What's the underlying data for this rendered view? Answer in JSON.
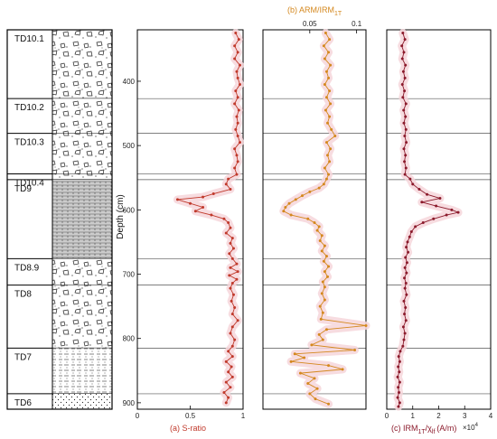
{
  "stratigraphy": {
    "units": [
      {
        "label": "TD10.1",
        "top": 320,
        "bottom": 427,
        "pattern": "breccia"
      },
      {
        "label": "TD10.2",
        "top": 427,
        "bottom": 481,
        "pattern": "breccia"
      },
      {
        "label": "TD10.3",
        "top": 481,
        "bottom": 544,
        "pattern": "breccia"
      },
      {
        "label": "TD10.4",
        "top": 544,
        "bottom": 553,
        "pattern": "breccia"
      },
      {
        "label": "TD9",
        "top": 553,
        "bottom": 676,
        "pattern": "laminated"
      },
      {
        "label": "TD8.9",
        "top": 676,
        "bottom": 717,
        "pattern": "breccia"
      },
      {
        "label": "TD8",
        "top": 717,
        "bottom": 815,
        "pattern": "breccia"
      },
      {
        "label": "TD7",
        "top": 815,
        "bottom": 886,
        "pattern": "sandy"
      },
      {
        "label": "TD6",
        "top": 886,
        "bottom": 910,
        "pattern": "dotted"
      }
    ]
  },
  "colors": {
    "s_ratio": "#c0392b",
    "arm": "#d4881e",
    "irm": "#8b1a2b",
    "band": "#f6d6da",
    "boundary": "#555555"
  },
  "chart_data": [
    {
      "type": "line",
      "title": "(a) S-ratio",
      "ylabel": "Depth (cm)",
      "ylim": [
        320,
        910
      ],
      "xlim": [
        0,
        1
      ],
      "xticks": [
        "0",
        "0.5",
        "1"
      ],
      "yticks": [
        "400",
        "500",
        "600",
        "700",
        "800",
        "900"
      ],
      "boundaries": [
        427,
        481,
        544,
        553,
        676,
        717,
        815,
        886
      ],
      "points": [
        {
          "depth": 325,
          "value": 0.93
        },
        {
          "depth": 335,
          "value": 0.96
        },
        {
          "depth": 345,
          "value": 0.92
        },
        {
          "depth": 355,
          "value": 0.95
        },
        {
          "depth": 365,
          "value": 0.92
        },
        {
          "depth": 375,
          "value": 0.97
        },
        {
          "depth": 385,
          "value": 0.94
        },
        {
          "depth": 395,
          "value": 0.95
        },
        {
          "depth": 405,
          "value": 0.97
        },
        {
          "depth": 415,
          "value": 0.93
        },
        {
          "depth": 425,
          "value": 0.95
        },
        {
          "depth": 435,
          "value": 0.92
        },
        {
          "depth": 445,
          "value": 0.96
        },
        {
          "depth": 455,
          "value": 0.94
        },
        {
          "depth": 465,
          "value": 0.95
        },
        {
          "depth": 475,
          "value": 0.93
        },
        {
          "depth": 485,
          "value": 0.95
        },
        {
          "depth": 495,
          "value": 0.97
        },
        {
          "depth": 505,
          "value": 0.92
        },
        {
          "depth": 515,
          "value": 0.94
        },
        {
          "depth": 525,
          "value": 0.95
        },
        {
          "depth": 535,
          "value": 0.92
        },
        {
          "depth": 545,
          "value": 0.94
        },
        {
          "depth": 552,
          "value": 0.86
        },
        {
          "depth": 560,
          "value": 0.84
        },
        {
          "depth": 568,
          "value": 0.88
        },
        {
          "depth": 575,
          "value": 0.72
        },
        {
          "depth": 580,
          "value": 0.62
        },
        {
          "depth": 584,
          "value": 0.38
        },
        {
          "depth": 590,
          "value": 0.5
        },
        {
          "depth": 596,
          "value": 0.62
        },
        {
          "depth": 602,
          "value": 0.55
        },
        {
          "depth": 608,
          "value": 0.7
        },
        {
          "depth": 614,
          "value": 0.82
        },
        {
          "depth": 620,
          "value": 0.86
        },
        {
          "depth": 628,
          "value": 0.88
        },
        {
          "depth": 636,
          "value": 0.84
        },
        {
          "depth": 644,
          "value": 0.9
        },
        {
          "depth": 652,
          "value": 0.88
        },
        {
          "depth": 660,
          "value": 0.91
        },
        {
          "depth": 668,
          "value": 0.87
        },
        {
          "depth": 676,
          "value": 0.9
        },
        {
          "depth": 684,
          "value": 0.94
        },
        {
          "depth": 690,
          "value": 0.88
        },
        {
          "depth": 696,
          "value": 0.95
        },
        {
          "depth": 702,
          "value": 0.87
        },
        {
          "depth": 708,
          "value": 0.94
        },
        {
          "depth": 714,
          "value": 0.9
        },
        {
          "depth": 722,
          "value": 0.88
        },
        {
          "depth": 732,
          "value": 0.91
        },
        {
          "depth": 742,
          "value": 0.89
        },
        {
          "depth": 752,
          "value": 0.92
        },
        {
          "depth": 762,
          "value": 0.9
        },
        {
          "depth": 772,
          "value": 0.95
        },
        {
          "depth": 782,
          "value": 0.9
        },
        {
          "depth": 792,
          "value": 0.88
        },
        {
          "depth": 802,
          "value": 0.92
        },
        {
          "depth": 812,
          "value": 0.9
        },
        {
          "depth": 820,
          "value": 0.86
        },
        {
          "depth": 828,
          "value": 0.9
        },
        {
          "depth": 836,
          "value": 0.84
        },
        {
          "depth": 844,
          "value": 0.89
        },
        {
          "depth": 852,
          "value": 0.86
        },
        {
          "depth": 860,
          "value": 0.9
        },
        {
          "depth": 868,
          "value": 0.84
        },
        {
          "depth": 876,
          "value": 0.88
        },
        {
          "depth": 884,
          "value": 0.82
        },
        {
          "depth": 892,
          "value": 0.86
        },
        {
          "depth": 900,
          "value": 0.84
        }
      ]
    },
    {
      "type": "line",
      "title": "(b) ARM/IRM1T",
      "ylim": [
        320,
        910
      ],
      "xlim": [
        0,
        0.11
      ],
      "xticks": [
        "0.05",
        "0.1"
      ],
      "boundaries": [
        427,
        481,
        544,
        553,
        676,
        717,
        815,
        886
      ],
      "points": [
        {
          "depth": 325,
          "value": 0.067
        },
        {
          "depth": 335,
          "value": 0.071
        },
        {
          "depth": 345,
          "value": 0.065
        },
        {
          "depth": 355,
          "value": 0.07
        },
        {
          "depth": 365,
          "value": 0.066
        },
        {
          "depth": 375,
          "value": 0.072
        },
        {
          "depth": 385,
          "value": 0.068
        },
        {
          "depth": 395,
          "value": 0.07
        },
        {
          "depth": 405,
          "value": 0.066
        },
        {
          "depth": 415,
          "value": 0.071
        },
        {
          "depth": 425,
          "value": 0.068
        },
        {
          "depth": 435,
          "value": 0.072
        },
        {
          "depth": 445,
          "value": 0.067
        },
        {
          "depth": 455,
          "value": 0.071
        },
        {
          "depth": 465,
          "value": 0.069
        },
        {
          "depth": 475,
          "value": 0.073
        },
        {
          "depth": 485,
          "value": 0.077
        },
        {
          "depth": 495,
          "value": 0.068
        },
        {
          "depth": 505,
          "value": 0.072
        },
        {
          "depth": 515,
          "value": 0.069
        },
        {
          "depth": 525,
          "value": 0.071
        },
        {
          "depth": 535,
          "value": 0.066
        },
        {
          "depth": 545,
          "value": 0.07
        },
        {
          "depth": 552,
          "value": 0.068
        },
        {
          "depth": 560,
          "value": 0.065
        },
        {
          "depth": 566,
          "value": 0.06
        },
        {
          "depth": 572,
          "value": 0.05
        },
        {
          "depth": 578,
          "value": 0.042
        },
        {
          "depth": 584,
          "value": 0.035
        },
        {
          "depth": 590,
          "value": 0.028
        },
        {
          "depth": 596,
          "value": 0.024
        },
        {
          "depth": 602,
          "value": 0.022
        },
        {
          "depth": 608,
          "value": 0.03
        },
        {
          "depth": 614,
          "value": 0.048
        },
        {
          "depth": 620,
          "value": 0.055
        },
        {
          "depth": 626,
          "value": 0.06
        },
        {
          "depth": 632,
          "value": 0.058
        },
        {
          "depth": 640,
          "value": 0.063
        },
        {
          "depth": 648,
          "value": 0.061
        },
        {
          "depth": 656,
          "value": 0.066
        },
        {
          "depth": 664,
          "value": 0.063
        },
        {
          "depth": 672,
          "value": 0.068
        },
        {
          "depth": 680,
          "value": 0.065
        },
        {
          "depth": 688,
          "value": 0.07
        },
        {
          "depth": 696,
          "value": 0.066
        },
        {
          "depth": 704,
          "value": 0.069
        },
        {
          "depth": 712,
          "value": 0.064
        },
        {
          "depth": 720,
          "value": 0.066
        },
        {
          "depth": 730,
          "value": 0.063
        },
        {
          "depth": 740,
          "value": 0.066
        },
        {
          "depth": 750,
          "value": 0.061
        },
        {
          "depth": 760,
          "value": 0.064
        },
        {
          "depth": 770,
          "value": 0.062
        },
        {
          "depth": 780,
          "value": 0.11
        },
        {
          "depth": 786,
          "value": 0.068
        },
        {
          "depth": 794,
          "value": 0.06
        },
        {
          "depth": 802,
          "value": 0.064
        },
        {
          "depth": 810,
          "value": 0.052
        },
        {
          "depth": 818,
          "value": 0.098
        },
        {
          "depth": 824,
          "value": 0.034
        },
        {
          "depth": 830,
          "value": 0.044
        },
        {
          "depth": 836,
          "value": 0.03
        },
        {
          "depth": 842,
          "value": 0.07
        },
        {
          "depth": 848,
          "value": 0.085
        },
        {
          "depth": 854,
          "value": 0.04
        },
        {
          "depth": 862,
          "value": 0.055
        },
        {
          "depth": 870,
          "value": 0.048
        },
        {
          "depth": 878,
          "value": 0.058
        },
        {
          "depth": 886,
          "value": 0.05
        },
        {
          "depth": 894,
          "value": 0.056
        },
        {
          "depth": 902,
          "value": 0.07
        }
      ]
    },
    {
      "type": "line",
      "title": "(c) IRM1T/χlf (A/m) ×10",
      "ylim": [
        320,
        910
      ],
      "xlim": [
        0,
        4
      ],
      "xticks": [
        "0",
        "1",
        "2",
        "3",
        "4"
      ],
      "boundaries": [
        427,
        481,
        544,
        553,
        676,
        717,
        815,
        886
      ],
      "points": [
        {
          "depth": 325,
          "value": 0.62
        },
        {
          "depth": 335,
          "value": 0.7
        },
        {
          "depth": 345,
          "value": 0.58
        },
        {
          "depth": 355,
          "value": 0.66
        },
        {
          "depth": 365,
          "value": 0.6
        },
        {
          "depth": 375,
          "value": 0.72
        },
        {
          "depth": 385,
          "value": 0.64
        },
        {
          "depth": 395,
          "value": 0.7
        },
        {
          "depth": 405,
          "value": 0.6
        },
        {
          "depth": 415,
          "value": 0.68
        },
        {
          "depth": 425,
          "value": 0.62
        },
        {
          "depth": 435,
          "value": 0.74
        },
        {
          "depth": 445,
          "value": 0.65
        },
        {
          "depth": 455,
          "value": 0.72
        },
        {
          "depth": 465,
          "value": 0.66
        },
        {
          "depth": 475,
          "value": 0.74
        },
        {
          "depth": 485,
          "value": 0.69
        },
        {
          "depth": 495,
          "value": 0.75
        },
        {
          "depth": 505,
          "value": 0.66
        },
        {
          "depth": 515,
          "value": 0.72
        },
        {
          "depth": 525,
          "value": 0.68
        },
        {
          "depth": 535,
          "value": 0.74
        },
        {
          "depth": 545,
          "value": 0.7
        },
        {
          "depth": 552,
          "value": 0.9
        },
        {
          "depth": 560,
          "value": 1.0
        },
        {
          "depth": 568,
          "value": 1.25
        },
        {
          "depth": 576,
          "value": 1.55
        },
        {
          "depth": 582,
          "value": 2.05
        },
        {
          "depth": 588,
          "value": 1.35
        },
        {
          "depth": 594,
          "value": 1.9
        },
        {
          "depth": 600,
          "value": 2.5
        },
        {
          "depth": 604,
          "value": 2.75
        },
        {
          "depth": 608,
          "value": 2.3
        },
        {
          "depth": 614,
          "value": 1.8
        },
        {
          "depth": 620,
          "value": 1.4
        },
        {
          "depth": 626,
          "value": 1.1
        },
        {
          "depth": 634,
          "value": 0.95
        },
        {
          "depth": 642,
          "value": 0.88
        },
        {
          "depth": 650,
          "value": 0.8
        },
        {
          "depth": 658,
          "value": 0.75
        },
        {
          "depth": 666,
          "value": 0.82
        },
        {
          "depth": 674,
          "value": 0.72
        },
        {
          "depth": 682,
          "value": 0.78
        },
        {
          "depth": 690,
          "value": 0.7
        },
        {
          "depth": 698,
          "value": 0.76
        },
        {
          "depth": 706,
          "value": 0.68
        },
        {
          "depth": 714,
          "value": 0.74
        },
        {
          "depth": 722,
          "value": 0.7
        },
        {
          "depth": 732,
          "value": 0.76
        },
        {
          "depth": 742,
          "value": 0.66
        },
        {
          "depth": 752,
          "value": 0.72
        },
        {
          "depth": 762,
          "value": 0.68
        },
        {
          "depth": 772,
          "value": 0.74
        },
        {
          "depth": 782,
          "value": 0.64
        },
        {
          "depth": 792,
          "value": 0.7
        },
        {
          "depth": 802,
          "value": 0.66
        },
        {
          "depth": 812,
          "value": 0.62
        },
        {
          "depth": 820,
          "value": 0.52
        },
        {
          "depth": 828,
          "value": 0.46
        },
        {
          "depth": 836,
          "value": 0.5
        },
        {
          "depth": 844,
          "value": 0.44
        },
        {
          "depth": 852,
          "value": 0.48
        },
        {
          "depth": 860,
          "value": 0.42
        },
        {
          "depth": 868,
          "value": 0.5
        },
        {
          "depth": 876,
          "value": 0.44
        },
        {
          "depth": 884,
          "value": 0.47
        },
        {
          "depth": 892,
          "value": 0.42
        },
        {
          "depth": 900,
          "value": 0.5
        },
        {
          "depth": 906,
          "value": 0.45
        }
      ]
    }
  ],
  "labels": {
    "s_ratio_title": "(a) S-ratio",
    "arm_title_main": "(b) ARM/IRM",
    "arm_title_sub": "1T",
    "irm_title_main": "(c) IRM",
    "irm_title_sub1": "1T",
    "irm_title_mid": "/χ",
    "irm_title_sub2": "lf",
    "irm_title_tail": "(A/m)",
    "irm_scale": "×10",
    "irm_scale_exp": "4",
    "depth_axis": "Depth (cm)"
  }
}
